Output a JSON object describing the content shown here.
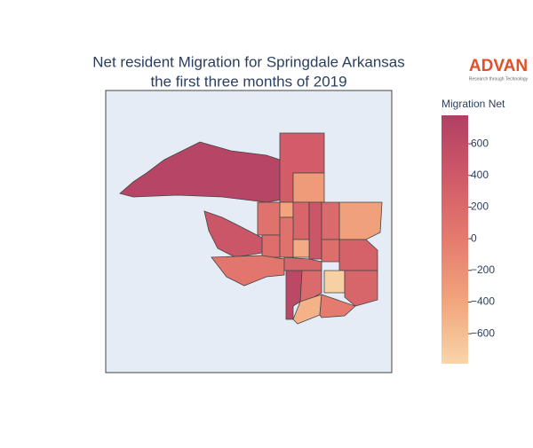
{
  "chart_data": {
    "type": "choropleth",
    "title": "Net resident Migration for Springdale Arkansas",
    "subtitle": "the first three months of 2019",
    "logo": "ADVAN",
    "logo_tagline": "Research through Technology",
    "colorbar_title": "Migration Net",
    "colorscale": [
      "#f8d5a8",
      "#f2a57d",
      "#e57b6e",
      "#d05a68",
      "#b13f64"
    ],
    "clim": [
      -790,
      780
    ],
    "cticks": [
      {
        "value": 600,
        "label": "600"
      },
      {
        "value": 400,
        "label": "400"
      },
      {
        "value": 200,
        "label": "200"
      },
      {
        "value": 0,
        "label": "0"
      },
      {
        "value": -200,
        "label": "−200"
      },
      {
        "value": -400,
        "label": "−400"
      },
      {
        "value": -600,
        "label": "−600"
      }
    ],
    "values": [
      700,
      350,
      -300,
      -350,
      450,
      100,
      -400,
      250,
      450,
      200,
      150,
      100,
      -450,
      150,
      300,
      50,
      250,
      650,
      200,
      -750,
      250,
      -500,
      0
    ]
  }
}
